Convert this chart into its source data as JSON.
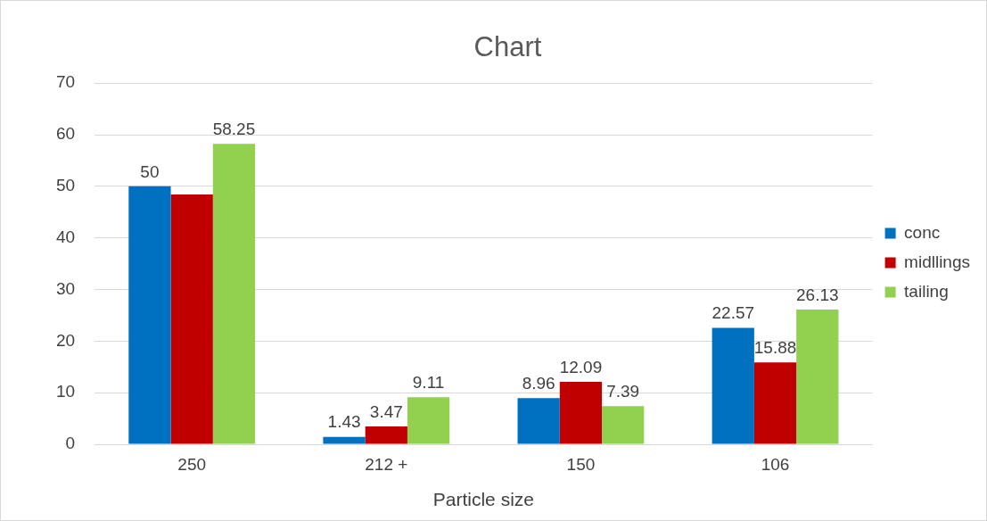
{
  "chart_data": {
    "type": "bar",
    "title": "Chart",
    "xlabel": "Particle size",
    "categories": [
      "250",
      "212 +",
      "150",
      "106"
    ],
    "series": [
      {
        "name": "conc",
        "color": "#0070c0",
        "values": [
          50,
          1.43,
          8.96,
          22.57
        ],
        "value_labels": [
          "50",
          "1.43",
          "8.96",
          "22.57"
        ]
      },
      {
        "name": "midllings",
        "color": "#c00000",
        "values": [
          48.4,
          3.47,
          12.09,
          15.88
        ],
        "value_labels": [
          null,
          "3.47",
          "12.09",
          "15.88"
        ]
      },
      {
        "name": "tailing",
        "color": "#92d050",
        "values": [
          58.25,
          9.11,
          7.39,
          26.13
        ],
        "value_labels": [
          "58.25",
          "9.11",
          "7.39",
          "26.13"
        ]
      }
    ],
    "ylim": [
      0,
      70
    ],
    "yticks": [
      0,
      10,
      20,
      30,
      40,
      50,
      60,
      70
    ],
    "grid": "y",
    "legend": "right"
  }
}
